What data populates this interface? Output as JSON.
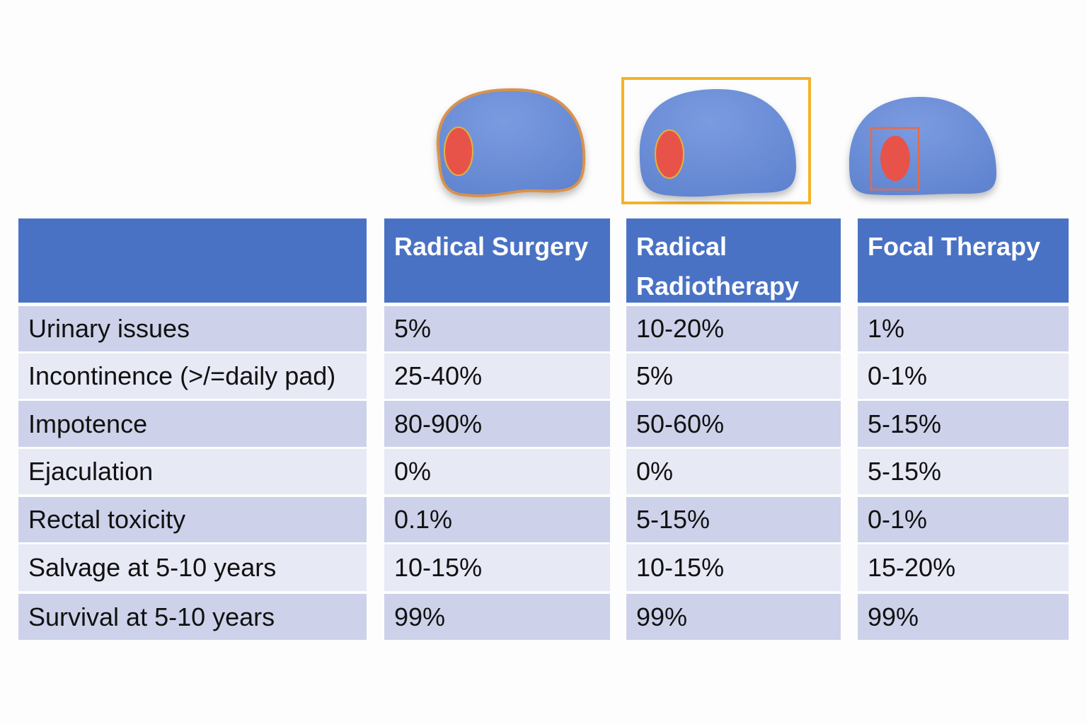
{
  "illustrations": [
    {
      "name": "radical-surgery-prostate",
      "highlighted": false
    },
    {
      "name": "radical-radiotherapy-prostate",
      "highlighted": true
    },
    {
      "name": "focal-therapy-prostate",
      "highlighted": false
    }
  ],
  "colors": {
    "header": "#4a72c4",
    "row_dark": "#cdd2ea",
    "row_light": "#e7e9f5",
    "prostate": "#6b8fd6",
    "tumour": "#e8524a",
    "highlight": "#f5b227"
  },
  "table": {
    "headers": [
      "",
      "Radical Surgery",
      "Radical Radiotherapy",
      "Focal Therapy"
    ],
    "rows": [
      [
        "Urinary issues",
        "5%",
        "10-20%",
        "1%"
      ],
      [
        "Incontinence (>/=daily pad)",
        "25-40%",
        "5%",
        "0-1%"
      ],
      [
        "Impotence",
        "80-90%",
        "50-60%",
        "5-15%"
      ],
      [
        "Ejaculation",
        "0%",
        "0%",
        "5-15%"
      ],
      [
        "Rectal toxicity",
        "0.1%",
        "5-15%",
        "0-1%"
      ],
      [
        "Salvage at 5-10 years",
        "10-15%",
        "10-15%",
        "15-20%"
      ],
      [
        "Survival at 5-10 years",
        "99%",
        "99%",
        "99%"
      ]
    ]
  }
}
